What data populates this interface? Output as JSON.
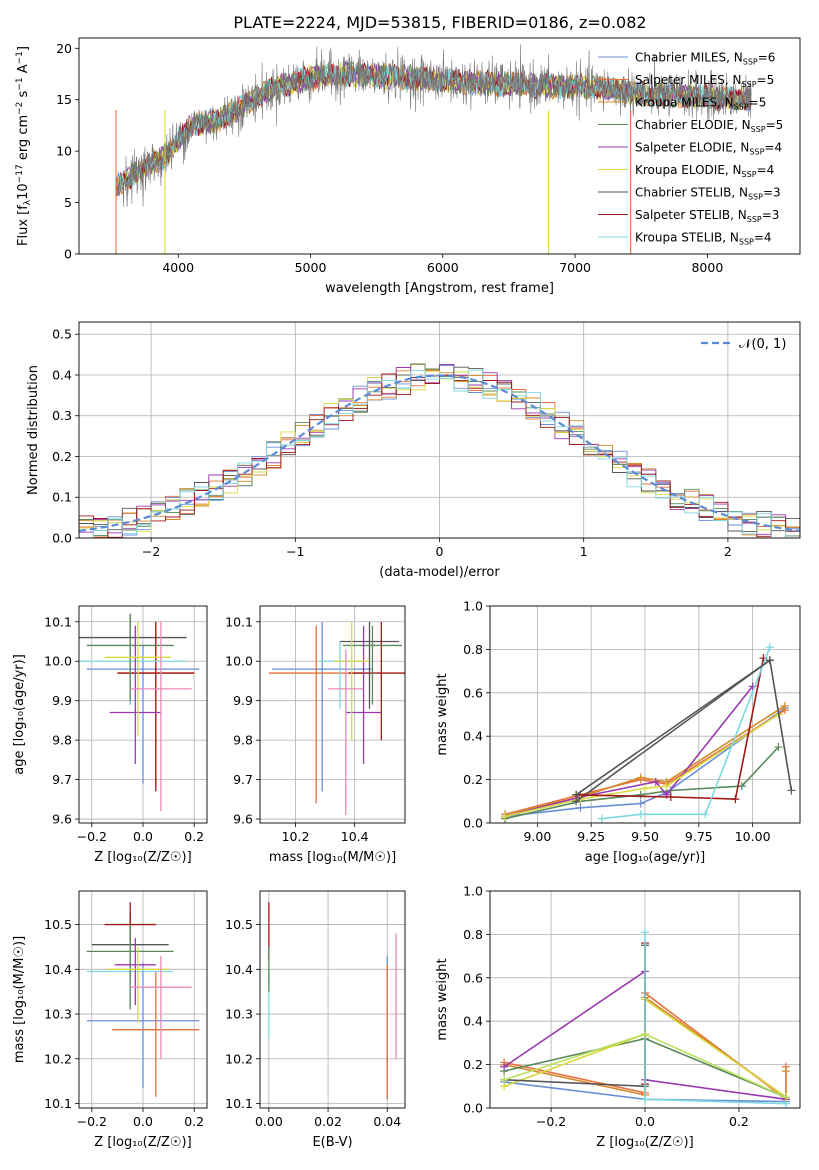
{
  "figure_title": "PLATE=2224, MJD=53815, FIBERID=0186, z=0.082",
  "colors": {
    "chabrier_miles": "#6a8fd9",
    "salpeter_miles": "#e8703a",
    "kroupa_miles": "#d48a2a",
    "chabrier_elodie": "#5a8a5a",
    "salpeter_elodie": "#9a3ab0",
    "kroupa_elodie": "#d8d840",
    "chabrier_stelib": "#555555",
    "salpeter_stelib": "#a01818",
    "kroupa_stelib": "#7ed8e0",
    "pink": "#e888b8",
    "light_green": "#b8e05a",
    "gaussian": "#5b8bd8",
    "grid": "#b0b0b0"
  },
  "chart_data": [
    {
      "id": "spectrum",
      "type": "line",
      "xlabel": "wavelength [Angstrom, rest frame]",
      "ylabel": "Flux [f",
      "ylabel_main": "Flux [f",
      "ylabel_sub": "λ",
      "ylabel_mid": "10",
      "ylabel_sup1": "−17",
      "ylabel_rest": " erg cm",
      "ylabel_sup2": "−2",
      "ylabel_s": " s",
      "ylabel_sup3": "−1",
      "ylabel_end": " A",
      "ylabel_sup4": "−1",
      "ylabel_close": "]",
      "xlim": [
        3250,
        8700
      ],
      "ylim": [
        0,
        21
      ],
      "xticks": [
        "4000",
        "5000",
        "6000",
        "7000",
        "8000"
      ],
      "xtick_values": [
        4000,
        5000,
        6000,
        7000,
        8000
      ],
      "yticks": [
        "0",
        "5",
        "10",
        "15",
        "20"
      ],
      "ytick_values": [
        0,
        5,
        10,
        15,
        20
      ],
      "x_range": [
        3530,
        8330
      ],
      "trend_x": [
        3530,
        3700,
        3900,
        4100,
        4300,
        4500,
        4700,
        4900,
        5100,
        5300,
        5500,
        5700,
        5900,
        6100,
        6300,
        6500,
        6700,
        6900,
        7100,
        7300,
        7500,
        7700,
        7900,
        8100,
        8330
      ],
      "trend_y": [
        6.5,
        8,
        9.5,
        12.5,
        13,
        14.5,
        16,
        16.8,
        17.3,
        17.5,
        17.3,
        17.2,
        17,
        16.8,
        16.6,
        16.5,
        16.4,
        16.3,
        16.2,
        16,
        15.6,
        15.4,
        15.3,
        15.2,
        15
      ],
      "legend": [
        {
          "main": "Chabrier MILES, N",
          "sub": "SSP",
          "val": "=6"
        },
        {
          "main": "Salpeter MILES, N",
          "sub": "SSP",
          "val": "=5"
        },
        {
          "main": "Kroupa MILES, N",
          "sub": "SSP",
          "val": "=5"
        },
        {
          "main": "Chabrier ELODIE, N",
          "sub": "SSP",
          "val": "=5"
        },
        {
          "main": "Salpeter ELODIE, N",
          "sub": "SSP",
          "val": "=4"
        },
        {
          "main": "Kroupa ELODIE, N",
          "sub": "SSP",
          "val": "=4"
        },
        {
          "main": "Chabrier STELIB, N",
          "sub": "SSP",
          "val": "=3"
        },
        {
          "main": "Salpeter STELIB, N",
          "sub": "SSP",
          "val": "=3"
        },
        {
          "main": "Kroupa STELIB, N",
          "sub": "SSP",
          "val": "=4"
        }
      ],
      "legend_placement": "upper-right"
    },
    {
      "id": "residuals",
      "type": "histogram",
      "xlabel": "(data-model)/error",
      "ylabel": "Normed distribution",
      "xlim": [
        -2.5,
        2.5
      ],
      "ylim": [
        0,
        0.53
      ],
      "xticks": [
        "−2",
        "−1",
        "0",
        "1",
        "2"
      ],
      "xtick_values": [
        -2,
        -1,
        0,
        1,
        2
      ],
      "yticks": [
        "0.0",
        "0.1",
        "0.2",
        "0.3",
        "0.4",
        "0.5"
      ],
      "ytick_values": [
        0,
        0.1,
        0.2,
        0.3,
        0.4,
        0.5
      ],
      "grid": true,
      "bin_width": 0.1,
      "gaussian_label": "𝒩(0, 1)",
      "legend_placement": "upper-right"
    },
    {
      "id": "age_vs_Z",
      "type": "errorbar",
      "xlabel": "Z [log₁₀(Z/Z☉)]",
      "ylabel": "age  [log₁₀(age/yr)]",
      "xlim": [
        -0.25,
        0.25
      ],
      "ylim": [
        9.59,
        10.14
      ],
      "xticks": [
        "−0.2",
        "0.0",
        "0.2"
      ],
      "xtick_values": [
        -0.2,
        0,
        0.2
      ],
      "yticks": [
        "9.6",
        "9.7",
        "9.8",
        "9.9",
        "10.0",
        "10.1"
      ],
      "ytick_values": [
        9.6,
        9.7,
        9.8,
        9.9,
        10.0,
        10.1
      ],
      "grid": true,
      "points": [
        {
          "color": "chabrier_miles",
          "x": 0.0,
          "xerr": 0.22,
          "y": 9.98,
          "yerr": [
            0.29,
            0.06
          ]
        },
        {
          "color": "salpeter_miles",
          "x": 0.05,
          "xerr": 0.15,
          "y": 9.97,
          "yerr": [
            0.29,
            0.13
          ]
        },
        {
          "color": "chabrier_stelib",
          "x": -0.05,
          "xerr": 0.22,
          "y": 10.06,
          "yerr": [
            0.17,
            0.06
          ]
        },
        {
          "color": "salpeter_stelib",
          "x": 0.05,
          "xerr": 0.15,
          "y": 9.97,
          "yerr": [
            0.3,
            0.13
          ]
        },
        {
          "color": "kroupa_stelib",
          "x": -0.05,
          "xerr": 0.22,
          "y": 10.0,
          "yerr": [
            0.11,
            0.05
          ]
        },
        {
          "color": "chabrier_elodie",
          "x": -0.05,
          "xerr": 0.17,
          "y": 10.04,
          "yerr": [
            0.14,
            0.08
          ]
        },
        {
          "color": "salpeter_elodie",
          "x": -0.03,
          "xerr": 0.1,
          "y": 9.87,
          "yerr": [
            0.13,
            0.22
          ]
        },
        {
          "color": "kroupa_elodie",
          "x": -0.02,
          "xerr": 0.13,
          "y": 10.01,
          "yerr": [
            0.2,
            0.09
          ]
        },
        {
          "color": "pink",
          "x": 0.07,
          "xerr": 0.12,
          "y": 9.93,
          "yerr": [
            0.31,
            0.17
          ]
        }
      ]
    },
    {
      "id": "age_vs_mass",
      "type": "errorbar",
      "xlabel": "mass [log₁₀(M/M☉)]",
      "ylabel": "",
      "xlim": [
        10.08,
        10.57
      ],
      "ylim": [
        9.59,
        10.14
      ],
      "xticks": [
        "10.2",
        "10.4"
      ],
      "xtick_values": [
        10.2,
        10.4
      ],
      "yticks": [
        "9.6",
        "9.7",
        "9.8",
        "9.9",
        "10.0",
        "10.1"
      ],
      "ytick_values": [
        9.6,
        9.7,
        9.8,
        9.9,
        10.0,
        10.1
      ],
      "grid": true,
      "points": [
        {
          "color": "chabrier_miles",
          "x": 10.29,
          "xerr": 0.17,
          "y": 9.98,
          "yerr": [
            0.31,
            0.12
          ]
        },
        {
          "color": "salpeter_miles",
          "x": 10.27,
          "xerr": 0.16,
          "y": 9.97,
          "yerr": [
            0.33,
            0.12
          ]
        },
        {
          "color": "chabrier_stelib",
          "x": 10.45,
          "xerr": 0.1,
          "y": 10.05,
          "yerr": [
            0.17,
            0.05
          ]
        },
        {
          "color": "salpeter_stelib",
          "x": 10.49,
          "xerr": 0.11,
          "y": 9.97,
          "yerr": [
            0.17,
            0.13
          ]
        },
        {
          "color": "kroupa_stelib",
          "x": 10.35,
          "xerr": 0.07,
          "y": 10.0,
          "yerr": [
            0.12,
            0.05
          ]
        },
        {
          "color": "chabrier_elodie",
          "x": 10.46,
          "xerr": 0.1,
          "y": 10.04,
          "yerr": [
            0.15,
            0.05
          ]
        },
        {
          "color": "salpeter_elodie",
          "x": 10.43,
          "xerr": 0.06,
          "y": 9.87,
          "yerr": [
            0.13,
            0.22
          ]
        },
        {
          "color": "kroupa_elodie",
          "x": 10.39,
          "xerr": 0.06,
          "y": 10.0,
          "yerr": [
            0.2,
            0.1
          ]
        },
        {
          "color": "pink",
          "x": 10.37,
          "xerr": 0.06,
          "y": 9.93,
          "yerr": [
            0.32,
            0.1
          ]
        }
      ]
    },
    {
      "id": "mass_weight_vs_age",
      "type": "line",
      "xlabel": "age  [log₁₀(age/yr)]",
      "ylabel": "mass weight",
      "xlim": [
        8.78,
        10.22
      ],
      "ylim": [
        0,
        1.0
      ],
      "xticks": [
        "9.00",
        "9.25",
        "9.50",
        "9.75",
        "10.00"
      ],
      "xtick_values": [
        9.0,
        9.25,
        9.5,
        9.75,
        10.0
      ],
      "yticks": [
        "0.0",
        "0.2",
        "0.4",
        "0.6",
        "0.8",
        "1.0"
      ],
      "ytick_values": [
        0,
        0.2,
        0.4,
        0.6,
        0.8,
        1.0
      ],
      "grid": true,
      "series": [
        {
          "color": "chabrier_miles",
          "x": [
            8.85,
            9.2,
            9.48,
            9.6,
            10.15
          ],
          "y": [
            0.03,
            0.07,
            0.09,
            0.14,
            0.53
          ]
        },
        {
          "color": "salpeter_miles",
          "x": [
            8.85,
            9.2,
            9.48,
            9.6,
            10.15
          ],
          "y": [
            0.04,
            0.13,
            0.2,
            0.18,
            0.52
          ]
        },
        {
          "color": "kroupa_miles",
          "x": [
            8.85,
            9.2,
            9.48,
            9.6,
            10.15
          ],
          "y": [
            0.04,
            0.12,
            0.21,
            0.19,
            0.54
          ]
        },
        {
          "color": "chabrier_elodie",
          "x": [
            8.85,
            9.2,
            9.48,
            9.62,
            9.95,
            10.12
          ],
          "y": [
            0.02,
            0.1,
            0.13,
            0.15,
            0.17,
            0.35
          ]
        },
        {
          "color": "salpeter_elodie",
          "x": [
            8.85,
            9.2,
            9.55,
            9.6,
            10.0
          ],
          "y": [
            0.03,
            0.12,
            0.19,
            0.13,
            0.63
          ]
        },
        {
          "color": "kroupa_elodie",
          "x": [
            8.85,
            9.2,
            9.5,
            9.6,
            10.12
          ],
          "y": [
            0.03,
            0.11,
            0.16,
            0.17,
            0.5
          ]
        },
        {
          "color": "chabrier_stelib",
          "x": [
            9.18,
            10.08,
            10.18
          ],
          "y": [
            0.1,
            0.75,
            0.15
          ]
        },
        {
          "color": "salpeter_stelib",
          "x": [
            9.18,
            9.62,
            9.92,
            10.05
          ],
          "y": [
            0.13,
            0.12,
            0.11,
            0.76
          ]
        },
        {
          "color": "kroupa_stelib",
          "x": [
            9.3,
            9.48,
            9.78,
            10.08
          ],
          "y": [
            0.02,
            0.04,
            0.04,
            0.81
          ]
        },
        {
          "color": "chabrier_stelib",
          "x": [
            9.18,
            10.08
          ],
          "y": [
            0.13,
            0.75
          ]
        }
      ]
    },
    {
      "id": "mass_vs_Z",
      "type": "errorbar",
      "xlabel": "Z [log₁₀(Z/Z☉)]",
      "ylabel": "mass [log₁₀(M/M☉)]",
      "xlim": [
        -0.25,
        0.25
      ],
      "ylim": [
        10.09,
        10.575
      ],
      "xticks": [
        "−0.2",
        "0.0",
        "0.2"
      ],
      "xtick_values": [
        -0.2,
        0,
        0.2
      ],
      "yticks": [
        "10.1",
        "10.2",
        "10.3",
        "10.4",
        "10.5"
      ],
      "ytick_values": [
        10.1,
        10.2,
        10.3,
        10.4,
        10.5
      ],
      "grid": true,
      "points": [
        {
          "color": "chabrier_miles",
          "x": 0.0,
          "xerr": 0.22,
          "y": 10.285,
          "yerr": [
            0.15,
            0.13
          ]
        },
        {
          "color": "salpeter_miles",
          "x": 0.05,
          "xerr": 0.17,
          "y": 10.265,
          "yerr": [
            0.15,
            0.13
          ]
        },
        {
          "color": "chabrier_stelib",
          "x": -0.05,
          "xerr": 0.15,
          "y": 10.455,
          "yerr": [
            0.08,
            0.07
          ]
        },
        {
          "color": "salpeter_stelib",
          "x": -0.05,
          "xerr": 0.1,
          "y": 10.5,
          "yerr": [
            0.1,
            0.05
          ]
        },
        {
          "color": "kroupa_stelib",
          "x": -0.05,
          "xerr": 0.17,
          "y": 10.395,
          "yerr": [
            0.08,
            0.06
          ]
        },
        {
          "color": "chabrier_elodie",
          "x": -0.05,
          "xerr": 0.17,
          "y": 10.44,
          "yerr": [
            0.13,
            0.06
          ]
        },
        {
          "color": "salpeter_elodie",
          "x": -0.03,
          "xerr": 0.08,
          "y": 10.41,
          "yerr": [
            0.09,
            0.06
          ]
        },
        {
          "color": "kroupa_elodie",
          "x": -0.02,
          "xerr": 0.12,
          "y": 10.4,
          "yerr": [
            0.12,
            0.05
          ]
        },
        {
          "color": "pink",
          "x": 0.07,
          "xerr": 0.12,
          "y": 10.36,
          "yerr": [
            0.16,
            0.07
          ]
        }
      ]
    },
    {
      "id": "mass_vs_ebv",
      "type": "errorbar",
      "xlabel": "E(B-V)",
      "ylabel": "",
      "xlim": [
        -0.003,
        0.046
      ],
      "ylim": [
        10.09,
        10.575
      ],
      "xticks": [
        "0.00",
        "0.02",
        "0.04"
      ],
      "xtick_values": [
        0,
        0.02,
        0.04
      ],
      "yticks": [
        "10.1",
        "10.2",
        "10.3",
        "10.4",
        "10.5"
      ],
      "ytick_values": [
        10.1,
        10.2,
        10.3,
        10.4,
        10.5
      ],
      "grid": true,
      "points": [
        {
          "color": "chabrier_miles",
          "x": 0.04,
          "xerr": 0,
          "y": 10.27,
          "yerr": [
            0.16,
            0.16
          ]
        },
        {
          "color": "salpeter_miles",
          "x": 0.04,
          "xerr": 0,
          "y": 10.26,
          "yerr": [
            0.15,
            0.15
          ]
        },
        {
          "color": "salpeter_stelib",
          "x": 0.0,
          "xerr": 0,
          "y": 10.48,
          "yerr": [
            0.06,
            0.07
          ]
        },
        {
          "color": "kroupa_stelib",
          "x": 0.0,
          "xerr": 0,
          "y": 10.33,
          "yerr": [
            0.08,
            0.08
          ]
        },
        {
          "color": "chabrier_elodie",
          "x": 0.0,
          "xerr": 0,
          "y": 10.4,
          "yerr": [
            0.05,
            0.05
          ]
        },
        {
          "color": "pink",
          "x": 0.043,
          "xerr": 0,
          "y": 10.34,
          "yerr": [
            0.14,
            0.14
          ]
        }
      ]
    },
    {
      "id": "mass_weight_vs_Z",
      "type": "line",
      "xlabel": "Z [log₁₀(Z/Z☉)]",
      "ylabel": "mass weight",
      "xlim": [
        -0.33,
        0.33
      ],
      "ylim": [
        0,
        1.0
      ],
      "xticks": [
        "−0.2",
        "0.0",
        "0.2"
      ],
      "xtick_values": [
        -0.2,
        0,
        0.2
      ],
      "yticks": [
        "0.0",
        "0.2",
        "0.4",
        "0.6",
        "0.8",
        "1.0"
      ],
      "ytick_values": [
        0,
        0.2,
        0.4,
        0.6,
        0.8,
        1.0
      ],
      "grid": true,
      "series": [
        {
          "color": "chabrier_miles",
          "x": [
            -0.3,
            0.0,
            0.3
          ],
          "y": [
            0.12,
            0.04,
            0.03
          ]
        },
        {
          "color": "salpeter_miles",
          "x": [
            -0.3,
            0.0,
            0.0,
            0.3,
            0.3
          ],
          "y": [
            0.21,
            0.07,
            0.53,
            0.04,
            0.19
          ]
        },
        {
          "color": "kroupa_miles",
          "x": [
            -0.3,
            0.0,
            0.0,
            0.3,
            0.3
          ],
          "y": [
            0.2,
            0.06,
            0.51,
            0.05,
            0.17
          ]
        },
        {
          "color": "chabrier_elodie",
          "x": [
            -0.3,
            0.0,
            0.0,
            0.3
          ],
          "y": [
            0.17,
            0.32,
            0.32,
            0.05
          ]
        },
        {
          "color": "salpeter_elodie",
          "x": [
            -0.3,
            0.0,
            0.0,
            0.3
          ],
          "y": [
            0.19,
            0.63,
            0.13,
            0.04
          ]
        },
        {
          "color": "kroupa_elodie",
          "x": [
            -0.3,
            0.0,
            0.0,
            0.3
          ],
          "y": [
            0.1,
            0.34,
            0.5,
            0.05
          ]
        },
        {
          "color": "chabrier_stelib",
          "x": [
            -0.3,
            0.0,
            0.0
          ],
          "y": [
            0.13,
            0.1,
            0.75
          ]
        },
        {
          "color": "salpeter_stelib",
          "x": [
            0.0,
            0.0
          ],
          "y": [
            0.11,
            0.76
          ]
        },
        {
          "color": "kroupa_stelib",
          "x": [
            0.0,
            0.0,
            0.3
          ],
          "y": [
            0.81,
            0.04,
            0.02
          ]
        },
        {
          "color": "light_green",
          "x": [
            -0.3,
            0.0,
            0.3
          ],
          "y": [
            0.13,
            0.34,
            0.05
          ]
        }
      ]
    }
  ]
}
